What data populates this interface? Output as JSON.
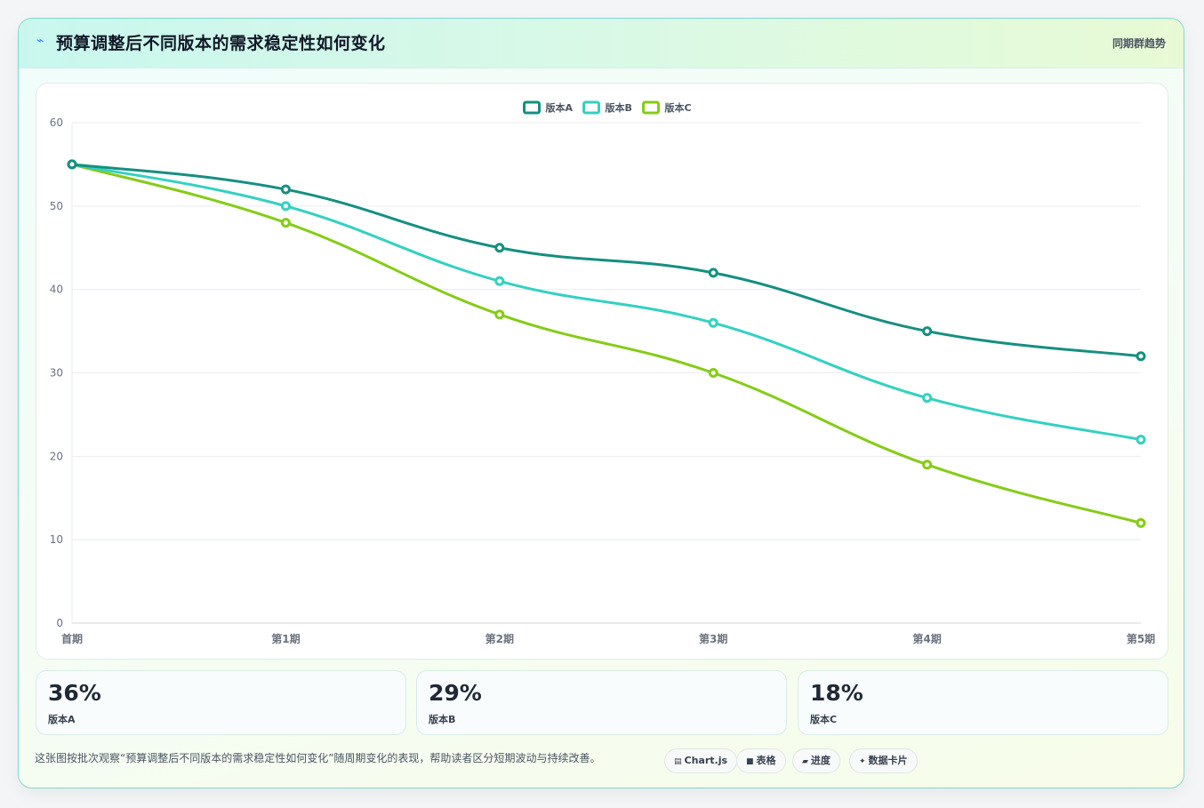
{
  "header": {
    "title": "预算调整后不同版本的需求稳定性如何变化",
    "tag": "同期群趋势",
    "icon": "lightning-icon"
  },
  "chart_data": {
    "type": "line",
    "categories": [
      "首期",
      "第1期",
      "第2期",
      "第3期",
      "第4期",
      "第5期"
    ],
    "series": [
      {
        "name": "版本A",
        "values": [
          55,
          52,
          45,
          42,
          35,
          32
        ],
        "color": "#158f80"
      },
      {
        "name": "版本B",
        "values": [
          55,
          50,
          41,
          36,
          27,
          22
        ],
        "color": "#33d1c1"
      },
      {
        "name": "版本C",
        "values": [
          55,
          48,
          37,
          30,
          19,
          12
        ],
        "color": "#84cc16"
      }
    ],
    "ylim": [
      0,
      60
    ],
    "yticks": [
      0,
      10,
      20,
      30,
      40,
      50,
      60
    ],
    "grid": true,
    "legend": "top-center"
  },
  "stats": [
    {
      "value": "36%",
      "label": "版本A",
      "color": "#158f80"
    },
    {
      "value": "29%",
      "label": "版本B",
      "color": "#2dc9b8"
    },
    {
      "value": "18%",
      "label": "版本C",
      "color": "#84cc16"
    }
  ],
  "footer": {
    "note": "这张图按批次观察“预算调整后不同版本的需求稳定性如何变化”随周期变化的表现，帮助读者区分短期波动与持续改善。",
    "chips": [
      {
        "icon": "chart-icon",
        "glyph": "▤",
        "label": "Chart.js"
      },
      {
        "icon": "table-icon",
        "glyph": "■",
        "label": "表格"
      },
      {
        "icon": "progress-icon",
        "glyph": "▰",
        "label": "进度"
      },
      {
        "icon": "card-icon",
        "glyph": "✦",
        "label": "数据卡片"
      }
    ]
  }
}
